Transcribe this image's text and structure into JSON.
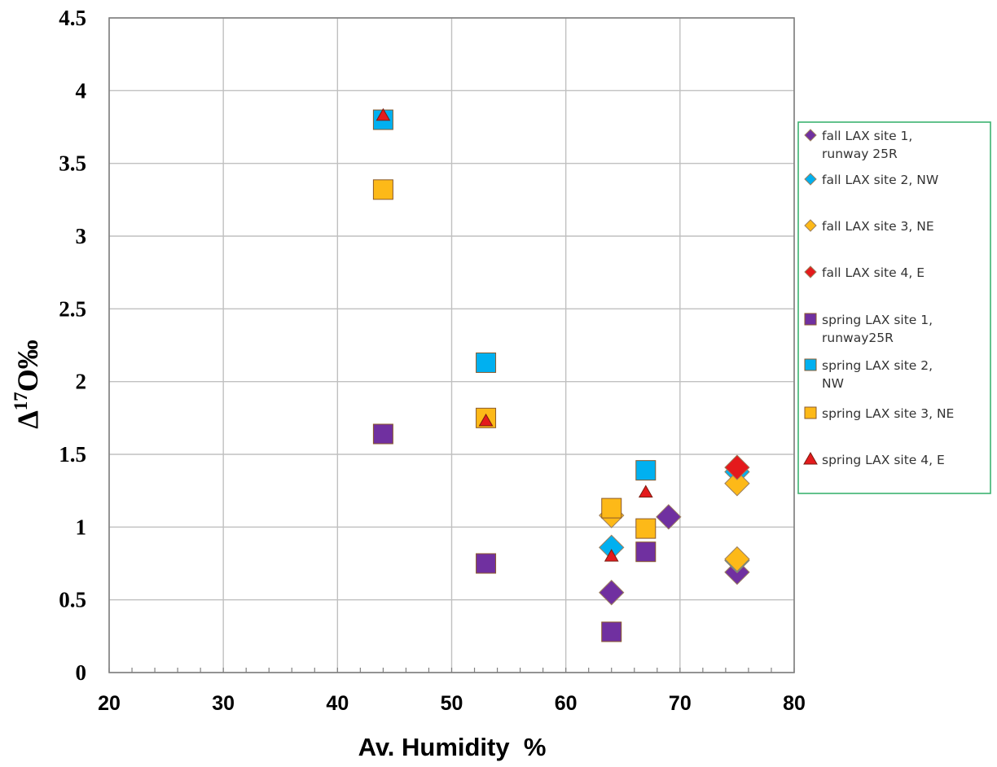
{
  "chart_data": {
    "type": "scatter",
    "title": "",
    "xlabel": "Av. Humidity  %",
    "ylabel_prefix": "Δ",
    "ylabel_sup": "17",
    "ylabel_suffix": "O‰",
    "xlim": [
      20,
      80
    ],
    "ylim": [
      0,
      4.5
    ],
    "x_ticks": [
      "20",
      "30",
      "40",
      "50",
      "60",
      "70",
      "80"
    ],
    "y_ticks": [
      "0",
      "0.5",
      "1",
      "1.5",
      "2",
      "2.5",
      "3",
      "3.5",
      "4",
      "4.5"
    ],
    "grid": true,
    "legend_position": "right",
    "series": [
      {
        "name": "fall LAX site 1, runway 25R",
        "name_lines": [
          "fall LAX site 1,",
          "runway 25R"
        ],
        "marker": "diamond",
        "color": "#7030a0",
        "size": "large",
        "points": [
          [
            64,
            0.55
          ],
          [
            69,
            1.07
          ],
          [
            75,
            0.69
          ]
        ]
      },
      {
        "name": "fall LAX site 2, NW",
        "name_lines": [
          "fall LAX site 2, NW"
        ],
        "marker": "diamond",
        "color": "#00b0f0",
        "size": "large",
        "points": [
          [
            64,
            0.86
          ],
          [
            75,
            1.38
          ],
          [
            75,
            0.77
          ]
        ]
      },
      {
        "name": "fall LAX site 3, NE",
        "name_lines": [
          "fall LAX site 3, NE"
        ],
        "marker": "diamond",
        "color": "#fdb918",
        "size": "large",
        "points": [
          [
            64,
            1.08
          ],
          [
            75,
            1.3
          ],
          [
            75,
            0.78
          ]
        ]
      },
      {
        "name": "fall LAX site 4, E",
        "name_lines": [
          "fall LAX site 4, E"
        ],
        "marker": "diamond",
        "color": "#e41a1c",
        "size": "large",
        "points": [
          [
            75,
            1.41
          ]
        ]
      },
      {
        "name": "spring LAX site 1, runway25R",
        "name_lines": [
          "spring LAX site 1,",
          "runway25R"
        ],
        "marker": "square",
        "color": "#7030a0",
        "size": "large",
        "points": [
          [
            44,
            1.64
          ],
          [
            53,
            0.75
          ],
          [
            64,
            0.28
          ],
          [
            67,
            0.83
          ]
        ]
      },
      {
        "name": "spring LAX site 2, NW",
        "name_lines": [
          "spring LAX site 2,",
          "NW"
        ],
        "marker": "square",
        "color": "#00b0f0",
        "size": "large",
        "points": [
          [
            44,
            3.8
          ],
          [
            53,
            2.13
          ],
          [
            67,
            1.39
          ]
        ]
      },
      {
        "name": "spring LAX site 3, NE",
        "name_lines": [
          "spring LAX site 3, NE"
        ],
        "marker": "square",
        "color": "#fdb918",
        "size": "large",
        "points": [
          [
            44,
            3.32
          ],
          [
            53,
            1.75
          ],
          [
            64,
            1.13
          ],
          [
            67,
            0.99
          ]
        ]
      },
      {
        "name": "spring LAX site 4, E",
        "name_lines": [
          "spring LAX site 4, E"
        ],
        "marker": "triangle",
        "color": "#e41a1c",
        "size": "small",
        "points": [
          [
            44,
            3.83
          ],
          [
            53,
            1.73
          ],
          [
            64,
            0.8
          ],
          [
            67,
            1.24
          ]
        ]
      }
    ]
  }
}
